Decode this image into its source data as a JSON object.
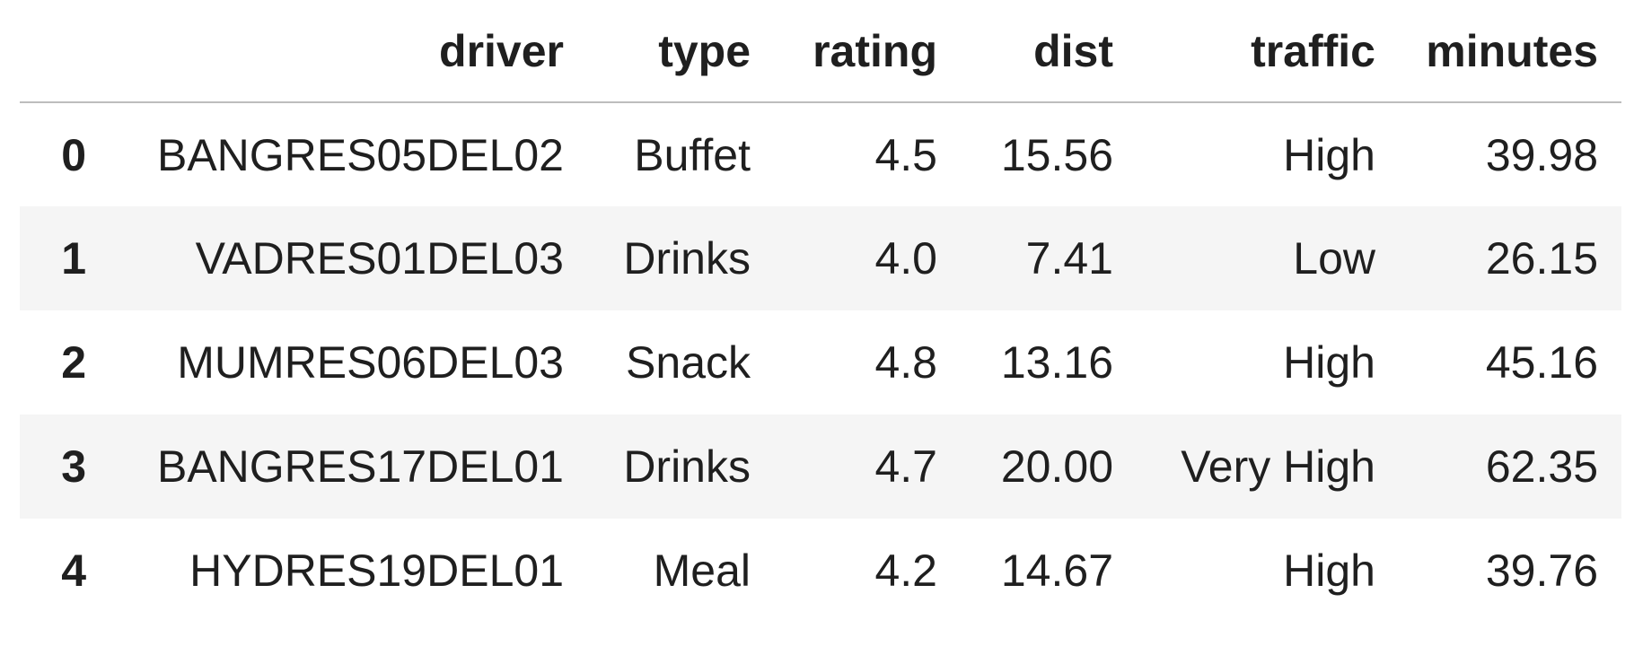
{
  "table": {
    "columns": [
      "",
      "driver",
      "type",
      "rating",
      "dist",
      "traffic",
      "minutes"
    ],
    "rows": [
      {
        "index": "0",
        "driver": "BANGRES05DEL02",
        "type": "Buffet",
        "rating": "4.5",
        "dist": "15.56",
        "traffic": "High",
        "minutes": "39.98"
      },
      {
        "index": "1",
        "driver": "VADRES01DEL03",
        "type": "Drinks",
        "rating": "4.0",
        "dist": "7.41",
        "traffic": "Low",
        "minutes": "26.15"
      },
      {
        "index": "2",
        "driver": "MUMRES06DEL03",
        "type": "Snack",
        "rating": "4.8",
        "dist": "13.16",
        "traffic": "High",
        "minutes": "45.16"
      },
      {
        "index": "3",
        "driver": "BANGRES17DEL01",
        "type": "Drinks",
        "rating": "4.7",
        "dist": "20.00",
        "traffic": "Very High",
        "minutes": "62.35"
      },
      {
        "index": "4",
        "driver": "HYDRES19DEL01",
        "type": "Meal",
        "rating": "4.2",
        "dist": "14.67",
        "traffic": "High",
        "minutes": "39.76"
      }
    ]
  },
  "colors": {
    "header_border": "#bdbdbd",
    "striped_row": "#f5f5f5",
    "text": "#1f1f1f"
  }
}
